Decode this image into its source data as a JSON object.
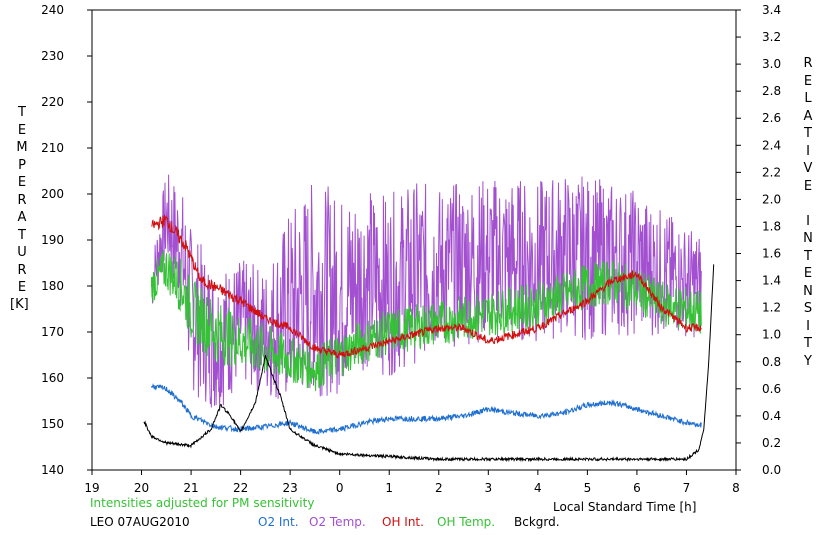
{
  "chart_data": {
    "type": "line",
    "note": "Intensities adjusted for PM sensitivity",
    "station": "LEO 07AUG2010",
    "xlabel": "Local Standard Time [h]",
    "ylabel_left": "TEMPERATURE",
    "ylabel_left_unit": "[K]",
    "ylabel_right": "RELATIVE INTENSITY",
    "x_ticks": [
      "19",
      "20",
      "21",
      "22",
      "23",
      "0",
      "1",
      "2",
      "3",
      "4",
      "5",
      "6",
      "7",
      "8"
    ],
    "xlim": [
      19,
      32
    ],
    "ylim_left": [
      140,
      240
    ],
    "ylim_right": [
      0.0,
      3.4
    ],
    "y_left_ticks": [
      "140",
      "150",
      "160",
      "170",
      "180",
      "190",
      "200",
      "210",
      "220",
      "230",
      "240"
    ],
    "y_right_ticks": [
      "0.0",
      "0.2",
      "0.4",
      "0.6",
      "0.8",
      "1.0",
      "1.2",
      "1.4",
      "1.6",
      "1.8",
      "2.0",
      "2.2",
      "2.4",
      "2.6",
      "2.8",
      "3.0",
      "3.2",
      "3.4"
    ],
    "legend": [
      {
        "name": "O2 Int.",
        "color": "#1f6fd0"
      },
      {
        "name": "O2 Temp.",
        "color": "#a24fd0"
      },
      {
        "name": "OH Int.",
        "color": "#d01010"
      },
      {
        "name": "OH Temp.",
        "color": "#36c236"
      },
      {
        "name": "Bckgrd.",
        "color": "#000000"
      }
    ],
    "series": [
      {
        "name": "O2 Temp.",
        "axis": "left",
        "color": "#a24fd0",
        "x": [
          20.2,
          20.5,
          20.8,
          21.0,
          21.5,
          22.0,
          22.5,
          23.0,
          23.5,
          24.0,
          24.5,
          25.0,
          25.5,
          26.0,
          26.5,
          27.0,
          27.5,
          28.0,
          28.5,
          29.0,
          29.5,
          30.0,
          30.5,
          31.0,
          31.3
        ],
        "y": [
          180,
          195,
          188,
          175,
          168,
          172,
          170,
          175,
          180,
          178,
          182,
          180,
          183,
          184,
          185,
          186,
          186,
          185,
          187,
          186,
          186,
          185,
          183,
          181,
          180
        ],
        "amp": [
          6,
          10,
          14,
          18,
          16,
          14,
          14,
          22,
          24,
          22,
          20,
          20,
          20,
          18,
          18,
          18,
          18,
          18,
          18,
          18,
          17,
          16,
          14,
          12,
          12
        ]
      },
      {
        "name": "OH Temp.",
        "axis": "left",
        "color": "#36c236",
        "x": [
          20.2,
          20.5,
          20.8,
          21.0,
          21.5,
          22.0,
          22.5,
          23.0,
          23.5,
          24.0,
          24.5,
          25.0,
          25.5,
          26.0,
          26.5,
          27.0,
          27.5,
          28.0,
          28.5,
          29.0,
          29.5,
          30.0,
          30.5,
          31.0,
          31.3
        ],
        "y": [
          180,
          184,
          180,
          175,
          170,
          168,
          166,
          164,
          162,
          165,
          168,
          170,
          171,
          172,
          173,
          174,
          175,
          176,
          178,
          180,
          181,
          179,
          176,
          175,
          174
        ],
        "amp": [
          4,
          5,
          6,
          7,
          7,
          6,
          6,
          5,
          5,
          5,
          5,
          5,
          5,
          5,
          5,
          5,
          5,
          5,
          5,
          5,
          5,
          5,
          5,
          5,
          5
        ]
      },
      {
        "name": "OH Int.",
        "axis": "right",
        "color": "#d01010",
        "x": [
          20.2,
          20.5,
          20.7,
          20.9,
          21.2,
          21.5,
          22.0,
          22.5,
          23.0,
          23.5,
          24.0,
          24.5,
          25.0,
          25.5,
          26.0,
          26.5,
          27.0,
          27.5,
          28.0,
          28.5,
          29.0,
          29.5,
          30.0,
          30.5,
          31.0,
          31.3
        ],
        "y": [
          1.8,
          1.85,
          1.75,
          1.65,
          1.4,
          1.35,
          1.25,
          1.12,
          1.05,
          0.9,
          0.85,
          0.9,
          0.95,
          1.0,
          1.05,
          1.05,
          0.95,
          1.0,
          1.05,
          1.15,
          1.25,
          1.4,
          1.45,
          1.2,
          1.05,
          1.05
        ],
        "amp": [
          0.04,
          0.05,
          0.05,
          0.05,
          0.04,
          0.04,
          0.04,
          0.03,
          0.03,
          0.03,
          0.03,
          0.03,
          0.03,
          0.03,
          0.03,
          0.03,
          0.03,
          0.03,
          0.03,
          0.03,
          0.03,
          0.03,
          0.03,
          0.03,
          0.03,
          0.03
        ]
      },
      {
        "name": "O2 Int.",
        "axis": "right",
        "color": "#1f6fd0",
        "x": [
          20.2,
          20.5,
          20.8,
          21.0,
          21.5,
          22.0,
          22.5,
          23.0,
          23.5,
          24.0,
          24.5,
          25.0,
          25.5,
          26.0,
          26.5,
          27.0,
          27.5,
          28.0,
          28.5,
          29.0,
          29.5,
          30.0,
          30.5,
          31.0,
          31.3
        ],
        "y": [
          0.62,
          0.6,
          0.5,
          0.4,
          0.32,
          0.3,
          0.32,
          0.35,
          0.28,
          0.3,
          0.35,
          0.38,
          0.38,
          0.38,
          0.4,
          0.45,
          0.42,
          0.4,
          0.42,
          0.48,
          0.5,
          0.45,
          0.4,
          0.35,
          0.33
        ],
        "amp": [
          0.02,
          0.02,
          0.02,
          0.02,
          0.02,
          0.02,
          0.02,
          0.02,
          0.02,
          0.02,
          0.02,
          0.02,
          0.02,
          0.02,
          0.02,
          0.02,
          0.02,
          0.02,
          0.02,
          0.02,
          0.02,
          0.02,
          0.02,
          0.02,
          0.02
        ]
      },
      {
        "name": "Bckgrd.",
        "axis": "right",
        "color": "#000000",
        "x": [
          20.05,
          20.2,
          20.5,
          21.0,
          21.4,
          21.6,
          21.8,
          22.0,
          22.3,
          22.5,
          22.8,
          23.0,
          23.5,
          24.0,
          25.0,
          26.0,
          27.0,
          28.0,
          29.0,
          30.0,
          31.0,
          31.25,
          31.35,
          31.45,
          31.55
        ],
        "y": [
          0.36,
          0.25,
          0.2,
          0.18,
          0.3,
          0.48,
          0.4,
          0.28,
          0.5,
          0.84,
          0.55,
          0.3,
          0.18,
          0.12,
          0.1,
          0.08,
          0.08,
          0.08,
          0.08,
          0.08,
          0.08,
          0.15,
          0.3,
          0.8,
          1.52
        ],
        "amp": [
          0.01,
          0.01,
          0.01,
          0.01,
          0.01,
          0.01,
          0.01,
          0.01,
          0.01,
          0.01,
          0.01,
          0.01,
          0.01,
          0.01,
          0.01,
          0.01,
          0.01,
          0.01,
          0.01,
          0.01,
          0.01,
          0.01,
          0.0,
          0.0,
          0.0
        ]
      }
    ]
  }
}
